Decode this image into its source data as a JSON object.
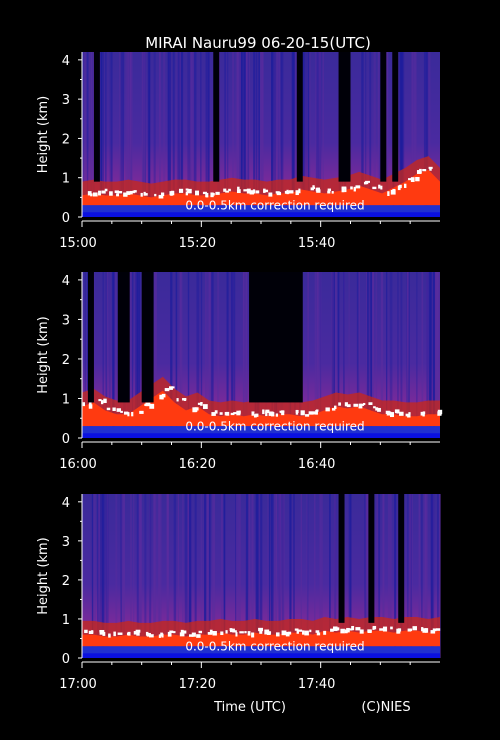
{
  "title": "MIRAI Nauru99 06-20-15(UTC)",
  "xlabel": "Time (UTC)",
  "credit": "(C)NIES",
  "colors": {
    "background": "#000000",
    "text": "#ffffff",
    "low": "#1a1aa0",
    "mid": "#5a2aa8",
    "high": "#e02010",
    "peak": "#ffffff"
  },
  "chart_data": [
    {
      "type": "heatmap",
      "ylabel": "Height (km)",
      "ylim": [
        0,
        4.2
      ],
      "yticks": [
        "0",
        "1",
        "2",
        "3",
        "4"
      ],
      "xlim": [
        0,
        60
      ],
      "xticks": [
        {
          "value": 0,
          "label": "15:00"
        },
        {
          "value": 20,
          "label": "15:20"
        },
        {
          "value": 40,
          "label": "15:40"
        }
      ],
      "annotation": "0.0-0.5km correction required",
      "boundary_layer_km": [
        0.55,
        0.6,
        0.55,
        0.55,
        0.6,
        0.55,
        0.5,
        0.55,
        0.6,
        0.6,
        0.55,
        0.55,
        0.6,
        0.65,
        0.6,
        0.6,
        0.55,
        0.6,
        0.6,
        0.7,
        0.65,
        0.6,
        0.65,
        0.7,
        0.8,
        0.7,
        0.6,
        0.75,
        0.9,
        1.1,
        1.2,
        0.9
      ],
      "dark_columns_min": [
        [
          2,
          3
        ],
        [
          22,
          23
        ],
        [
          36,
          37
        ],
        [
          43,
          45
        ],
        [
          50,
          51
        ],
        [
          52,
          53
        ]
      ]
    },
    {
      "type": "heatmap",
      "ylabel": "Height (km)",
      "ylim": [
        0,
        4.2
      ],
      "yticks": [
        "0",
        "1",
        "2",
        "3",
        "4"
      ],
      "xlim": [
        0,
        60
      ],
      "xticks": [
        {
          "value": 0,
          "label": "16:00"
        },
        {
          "value": 20,
          "label": "16:20"
        },
        {
          "value": 40,
          "label": "16:40"
        }
      ],
      "annotation": "0.0-0.5km correction required",
      "boundary_layer_km": [
        0.8,
        0.9,
        0.7,
        0.6,
        0.6,
        0.8,
        1.0,
        1.2,
        0.9,
        0.7,
        0.8,
        0.6,
        0.55,
        0.6,
        0.55,
        0.6,
        0.55,
        0.6,
        0.6,
        0.55,
        0.6,
        0.7,
        0.8,
        0.75,
        0.8,
        0.7,
        0.6,
        0.6,
        0.55,
        0.55,
        0.6,
        0.6
      ],
      "dark_columns_min": [
        [
          1,
          2
        ],
        [
          6,
          8
        ],
        [
          10,
          12
        ],
        [
          28,
          37
        ]
      ]
    },
    {
      "type": "heatmap",
      "ylabel": "Height (km)",
      "ylim": [
        0,
        4.2
      ],
      "yticks": [
        "0",
        "1",
        "2",
        "3",
        "4"
      ],
      "xlim": [
        0,
        60
      ],
      "xticks": [
        {
          "value": 0,
          "label": "17:00"
        },
        {
          "value": 20,
          "label": "17:20"
        },
        {
          "value": 40,
          "label": "17:40"
        }
      ],
      "annotation": "0.0-0.5km correction required",
      "boundary_layer_km": [
        0.6,
        0.6,
        0.55,
        0.55,
        0.6,
        0.55,
        0.55,
        0.6,
        0.6,
        0.55,
        0.6,
        0.6,
        0.65,
        0.6,
        0.6,
        0.65,
        0.6,
        0.6,
        0.65,
        0.65,
        0.6,
        0.7,
        0.65,
        0.7,
        0.65,
        0.7,
        0.7,
        0.65,
        0.7,
        0.7,
        0.65,
        0.7
      ],
      "dark_columns_min": [
        [
          43,
          44
        ],
        [
          48,
          49
        ],
        [
          53,
          54
        ]
      ]
    }
  ]
}
